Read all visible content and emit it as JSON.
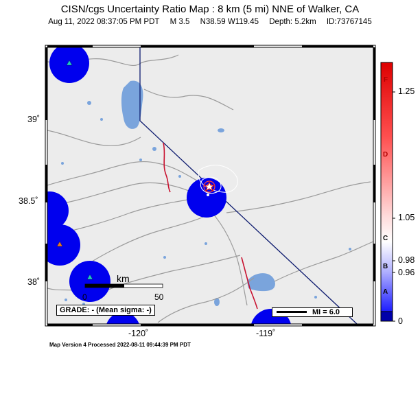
{
  "title": "CISN/cgs Uncertainty Ratio Map : 8 km (5 mi) NNE of Walker, CA",
  "subtitle": {
    "datetime": "Aug 11, 2022 08:37:05 PM PDT",
    "magnitude": "M 3.5",
    "location": "N38.59 W119.45",
    "depth": "Depth: 5.2km",
    "event_id": "ID:73767145"
  },
  "lat_labels": [
    "39˚",
    "38.5˚",
    "38˚"
  ],
  "lon_labels": [
    "-120˚",
    "-119˚"
  ],
  "scale_bar": {
    "unit": "km",
    "start": "0",
    "end": "50"
  },
  "grade_box": "GRADE: - (Mean sigma: -)",
  "mi_legend": "MI = 6.0",
  "colorbar": {
    "ticks": [
      "1.25",
      "1.05",
      "0.98",
      "0.96",
      "0"
    ],
    "grades": [
      "F",
      "D",
      "C",
      "B",
      "A"
    ]
  },
  "footer": "Map Version 4 Processed 2022-08-11 09:44:39 PM PDT",
  "colors": {
    "land": "#ececec",
    "water": "#7aa4dc",
    "uncertainty": "#0000ee",
    "border": "#0c1a6e",
    "fault": "#c8102e"
  },
  "icons": [
    "station-triangle-icon",
    "epicenter-star-icon"
  ]
}
